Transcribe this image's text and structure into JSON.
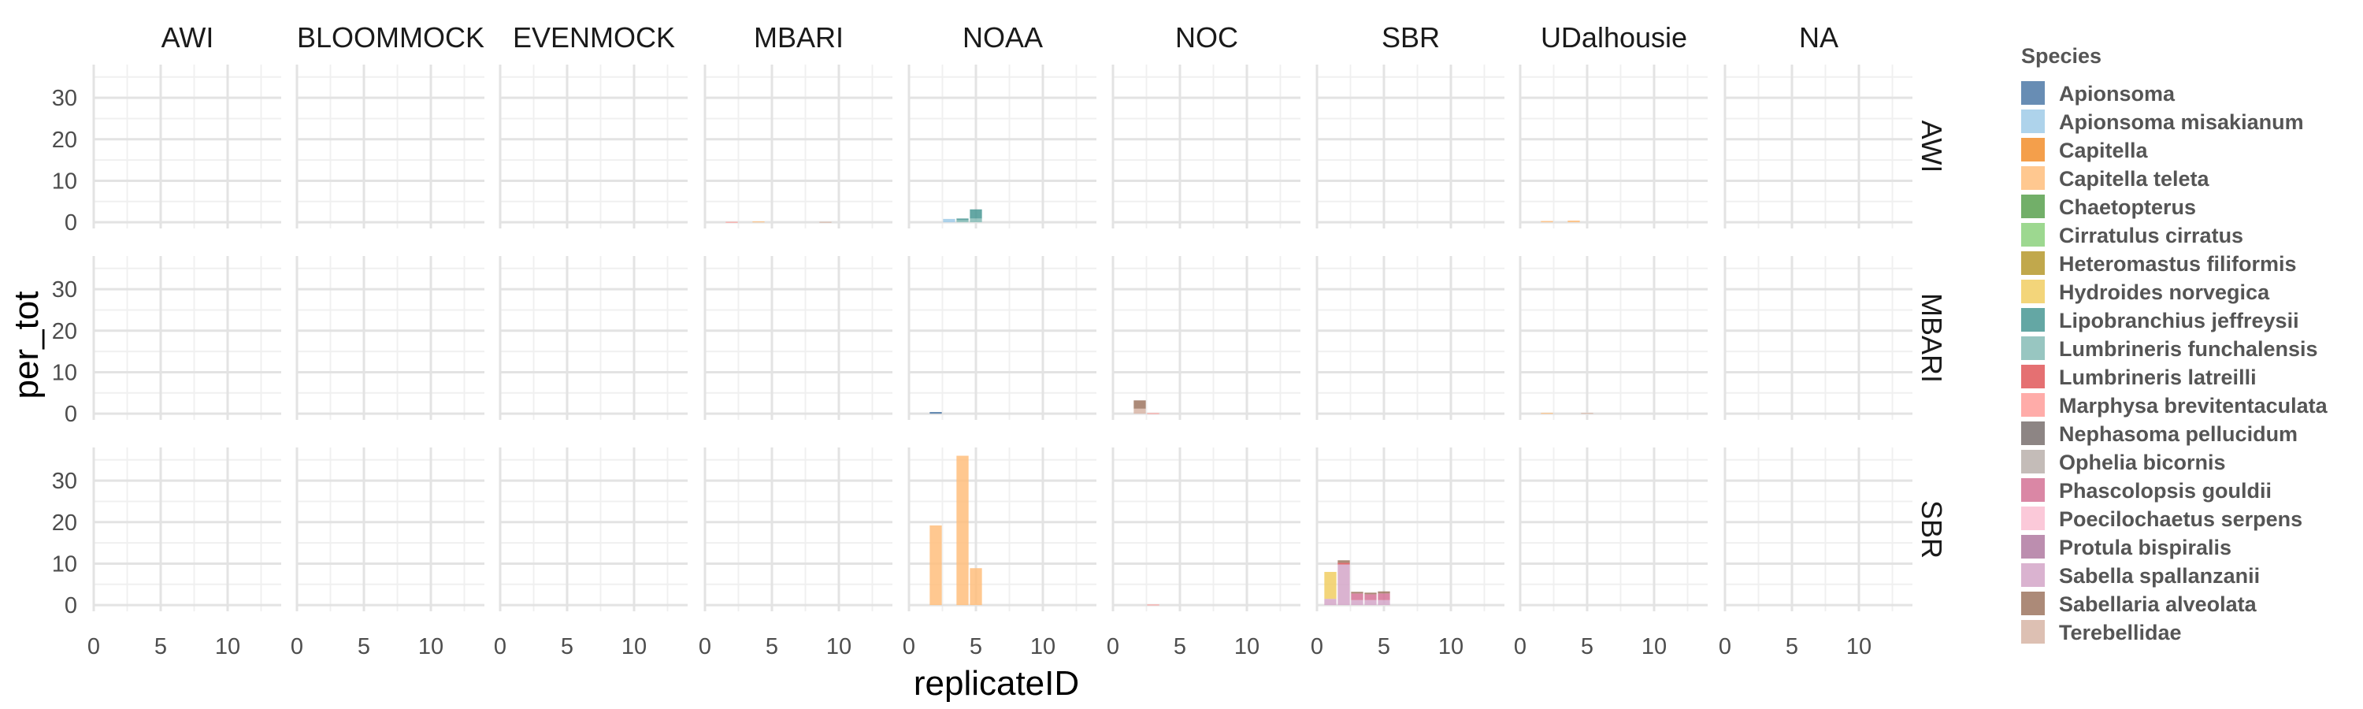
{
  "chart_data": {
    "type": "bar",
    "stacked": true,
    "xlabel": "replicateID",
    "ylabel": "per_tot",
    "xlim": [
      0,
      14
    ],
    "ylim": [
      -1.5,
      38
    ],
    "x_ticks": [
      0,
      5,
      10
    ],
    "y_ticks": [
      0,
      10,
      20,
      30
    ],
    "grid": true,
    "legend_placement": "right",
    "legend_title": "Species",
    "facet_cols": [
      "AWI",
      "BLOOMMOCK",
      "EVENMOCK",
      "MBARI",
      "NOAA",
      "NOC",
      "SBR",
      "UDalhousie",
      "NA"
    ],
    "facet_rows": [
      "AWI",
      "MBARI",
      "SBR"
    ],
    "species": [
      {
        "name": "Apionsoma",
        "color": "#4e79a7"
      },
      {
        "name": "Apionsoma misakianum",
        "color": "#a0cbe8"
      },
      {
        "name": "Capitella",
        "color": "#f28e2b"
      },
      {
        "name": "Capitella teleta",
        "color": "#ffbe7d"
      },
      {
        "name": "Chaetopterus",
        "color": "#59a14f"
      },
      {
        "name": "Cirratulus cirratus",
        "color": "#8cd17d"
      },
      {
        "name": "Heteromastus filiformis",
        "color": "#b6992d"
      },
      {
        "name": "Hydroides norvegica",
        "color": "#f1ce63"
      },
      {
        "name": "Lipobranchius jeffreysii",
        "color": "#499894"
      },
      {
        "name": "Lumbrineris funchalensis",
        "color": "#86bcb6"
      },
      {
        "name": "Lumbrineris latreilli",
        "color": "#e15759"
      },
      {
        "name": "Marphysa brevitentaculata",
        "color": "#ff9d9a"
      },
      {
        "name": "Nephasoma pellucidum",
        "color": "#79706e"
      },
      {
        "name": "Ophelia bicornis",
        "color": "#bab0ac"
      },
      {
        "name": "Phascolopsis gouldii",
        "color": "#d37295"
      },
      {
        "name": "Poecilochaetus serpens",
        "color": "#fabfd2"
      },
      {
        "name": "Protula bispiralis",
        "color": "#b07aa1"
      },
      {
        "name": "Sabella spallanzanii",
        "color": "#d4a6c8"
      },
      {
        "name": "Sabellaria alveolata",
        "color": "#9d7660"
      },
      {
        "name": "Terebellidae",
        "color": "#d7b5a6"
      }
    ],
    "bars": [
      {
        "row": "AWI",
        "col": "MBARI",
        "x": 2,
        "segments": [
          {
            "species": "Marphysa brevitentaculata",
            "value": 0.1
          }
        ]
      },
      {
        "row": "AWI",
        "col": "MBARI",
        "x": 4,
        "segments": [
          {
            "species": "Capitella teleta",
            "value": 0.2
          }
        ]
      },
      {
        "row": "AWI",
        "col": "MBARI",
        "x": 9,
        "segments": [
          {
            "species": "Terebellidae",
            "value": 0.1
          }
        ]
      },
      {
        "row": "AWI",
        "col": "NOAA",
        "x": 3,
        "segments": [
          {
            "species": "Apionsoma misakianum",
            "value": 0.8
          }
        ]
      },
      {
        "row": "AWI",
        "col": "NOAA",
        "x": 4,
        "segments": [
          {
            "species": "Lumbrineris funchalensis",
            "value": 0.5
          },
          {
            "species": "Lipobranchius jeffreysii",
            "value": 0.4
          }
        ]
      },
      {
        "row": "AWI",
        "col": "NOAA",
        "x": 5,
        "segments": [
          {
            "species": "Lumbrineris funchalensis",
            "value": 0.9
          },
          {
            "species": "Lipobranchius jeffreysii",
            "value": 2.2
          }
        ]
      },
      {
        "row": "AWI",
        "col": "UDalhousie",
        "x": 2,
        "segments": [
          {
            "species": "Capitella teleta",
            "value": 0.3
          }
        ]
      },
      {
        "row": "AWI",
        "col": "UDalhousie",
        "x": 4,
        "segments": [
          {
            "species": "Capitella teleta",
            "value": 0.4
          }
        ]
      },
      {
        "row": "MBARI",
        "col": "NOAA",
        "x": 2,
        "segments": [
          {
            "species": "Apionsoma",
            "value": 0.4
          }
        ]
      },
      {
        "row": "MBARI",
        "col": "NOC",
        "x": 2,
        "segments": [
          {
            "species": "Terebellidae",
            "value": 1.2
          },
          {
            "species": "Sabellaria alveolata",
            "value": 2.0
          }
        ]
      },
      {
        "row": "MBARI",
        "col": "NOC",
        "x": 3,
        "segments": [
          {
            "species": "Marphysa brevitentaculata",
            "value": 0.15
          }
        ]
      },
      {
        "row": "MBARI",
        "col": "UDalhousie",
        "x": 2,
        "segments": [
          {
            "species": "Capitella teleta",
            "value": 0.2
          }
        ]
      },
      {
        "row": "MBARI",
        "col": "UDalhousie",
        "x": 5,
        "segments": [
          {
            "species": "Terebellidae",
            "value": 0.2
          }
        ]
      },
      {
        "row": "SBR",
        "col": "NOAA",
        "x": 2,
        "segments": [
          {
            "species": "Capitella teleta",
            "value": 19.2
          }
        ]
      },
      {
        "row": "SBR",
        "col": "NOAA",
        "x": 4,
        "segments": [
          {
            "species": "Capitella teleta",
            "value": 36.0
          }
        ]
      },
      {
        "row": "SBR",
        "col": "NOAA",
        "x": 5,
        "segments": [
          {
            "species": "Capitella teleta",
            "value": 8.9
          }
        ]
      },
      {
        "row": "SBR",
        "col": "NOC",
        "x": 3,
        "segments": [
          {
            "species": "Marphysa brevitentaculata",
            "value": 0.15
          }
        ]
      },
      {
        "row": "SBR",
        "col": "SBR",
        "x": 1,
        "segments": [
          {
            "species": "Sabella spallanzanii",
            "value": 1.5
          },
          {
            "species": "Hydroides norvegica",
            "value": 6.5
          }
        ]
      },
      {
        "row": "SBR",
        "col": "SBR",
        "x": 2,
        "segments": [
          {
            "species": "Sabella spallanzanii",
            "value": 9.8
          },
          {
            "species": "Lumbrineris latreilli",
            "value": 0.4
          },
          {
            "species": "Sabellaria alveolata",
            "value": 0.6
          }
        ]
      },
      {
        "row": "SBR",
        "col": "SBR",
        "x": 3,
        "segments": [
          {
            "species": "Sabella spallanzanii",
            "value": 1.2
          },
          {
            "species": "Phascolopsis gouldii",
            "value": 1.6
          },
          {
            "species": "Sabellaria alveolata",
            "value": 0.4
          }
        ]
      },
      {
        "row": "SBR",
        "col": "SBR",
        "x": 4,
        "segments": [
          {
            "species": "Sabella spallanzanii",
            "value": 1.2
          },
          {
            "species": "Phascolopsis gouldii",
            "value": 1.4
          },
          {
            "species": "Sabellaria alveolata",
            "value": 0.4
          }
        ]
      },
      {
        "row": "SBR",
        "col": "SBR",
        "x": 5,
        "segments": [
          {
            "species": "Sabella spallanzanii",
            "value": 1.2
          },
          {
            "species": "Phascolopsis gouldii",
            "value": 1.6
          },
          {
            "species": "Sabellaria alveolata",
            "value": 0.5
          }
        ]
      }
    ]
  }
}
